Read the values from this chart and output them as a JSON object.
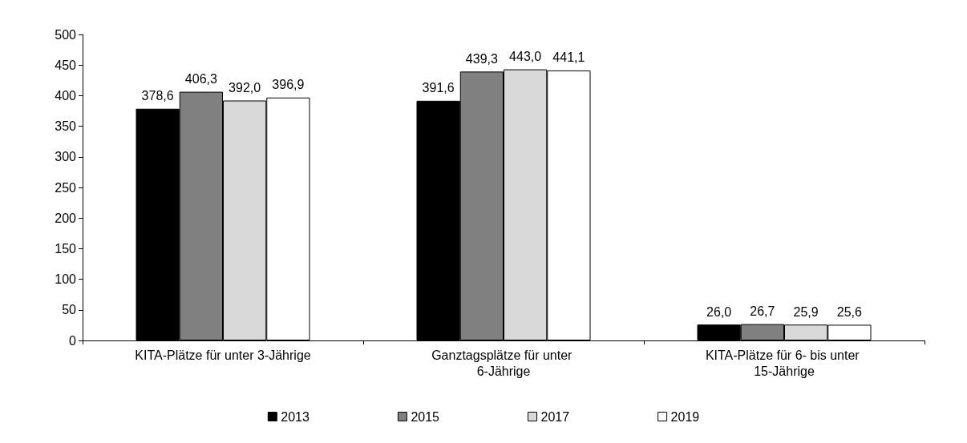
{
  "chart_data": {
    "type": "bar",
    "categories": [
      "KITA-Plätze für unter 3-Jährige",
      "Ganztagsplätze für unter 6-Jährige",
      "KITA-Plätze für 6- bis unter 15-Jährige"
    ],
    "series": [
      {
        "name": "2013",
        "color": "#000000",
        "values": [
          378.6,
          391.6,
          26.0
        ],
        "value_labels": [
          "378,6",
          "391,6",
          "26,0"
        ]
      },
      {
        "name": "2015",
        "color": "#808080",
        "values": [
          406.3,
          439.3,
          26.7
        ],
        "value_labels": [
          "406,3",
          "439,3",
          "26,7"
        ]
      },
      {
        "name": "2017",
        "color": "#d9d9d9",
        "values": [
          392.0,
          443.0,
          25.9
        ],
        "value_labels": [
          "392,0",
          "443,0",
          "25,9"
        ]
      },
      {
        "name": "2019",
        "color": "#ffffff",
        "values": [
          396.9,
          441.1,
          25.6
        ],
        "value_labels": [
          "396,9",
          "441,1",
          "25,6"
        ]
      }
    ],
    "ylim": [
      0,
      500
    ],
    "yticks": [
      0,
      50,
      100,
      150,
      200,
      250,
      300,
      350,
      400,
      450,
      500
    ],
    "grid": false,
    "legend": "bottom"
  }
}
